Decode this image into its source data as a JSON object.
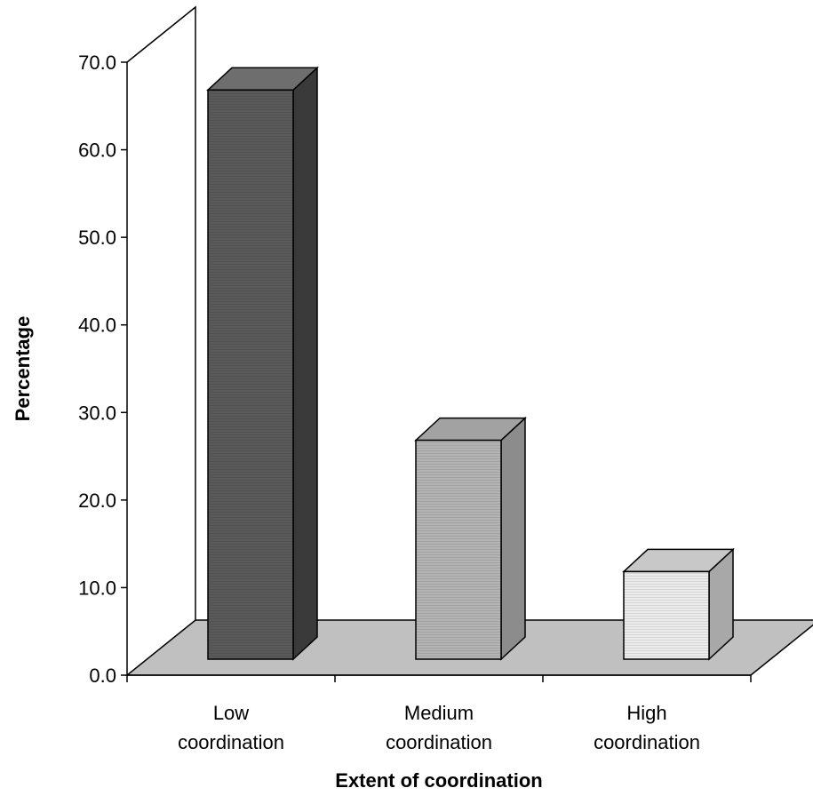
{
  "chart_data": {
    "type": "bar",
    "style": "3d-column",
    "title": "",
    "xlabel": "Extent of coordination",
    "ylabel": "Percentage",
    "ylim": [
      0,
      70
    ],
    "yticks": [
      "0.0",
      "10.0",
      "20.0",
      "30.0",
      "40.0",
      "50.0",
      "60.0",
      "70.0"
    ],
    "categories": [
      [
        "Low",
        "coordination"
      ],
      [
        "Medium",
        "coordination"
      ],
      [
        "High",
        "coordination"
      ]
    ],
    "values": [
      65,
      25,
      10
    ],
    "colors": {
      "bars": [
        "#5a5a5a",
        "#b4b4b4",
        "#ececec"
      ],
      "bar_sides": [
        "#3a3a3a",
        "#8c8c8c",
        "#a8a8a8"
      ],
      "bar_tops": [
        "#6e6e6e",
        "#a2a2a2",
        "#c8c8c8"
      ],
      "floor": "#c0c0c0"
    },
    "grid": false,
    "legend": "none"
  }
}
